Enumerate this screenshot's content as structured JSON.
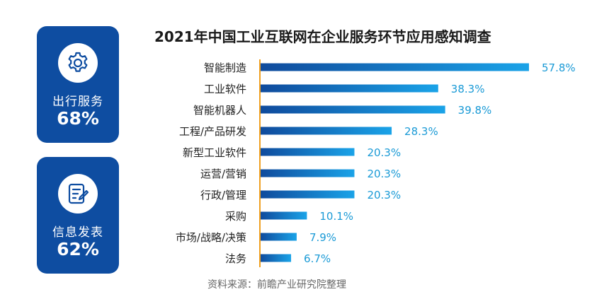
{
  "cards": [
    {
      "label": "出行服务",
      "value": "68%",
      "icon": "gear-icon"
    },
    {
      "label": "信息发表",
      "value": "62%",
      "icon": "edit-document-icon"
    }
  ],
  "source": "资料来源：前瞻产业研究院整理",
  "colors": {
    "card_bg": "#0e4da1",
    "bar_start": "#0f4a9c",
    "bar_end": "#1aa3e8",
    "value_text": "#1a9ad6",
    "axis_line": "#f0a020"
  },
  "chart_data": {
    "type": "bar",
    "orientation": "horizontal",
    "title": "2021年中国工业互联网在企业服务环节应用感知调查",
    "categories": [
      "智能制造",
      "工业软件",
      "智能机器人",
      "工程/产品研发",
      "新型工业软件",
      "运营/营销",
      "行政/管理",
      "采购",
      "市场/战略/决策",
      "法务"
    ],
    "values": [
      57.8,
      38.3,
      39.8,
      28.3,
      20.3,
      20.3,
      20.3,
      10.1,
      7.9,
      6.7
    ],
    "value_labels": [
      "57.8%",
      "38.3%",
      "39.8%",
      "28.3%",
      "20.3%",
      "20.3%",
      "20.3%",
      "10.1%",
      "7.9%",
      "6.7%"
    ],
    "xlim": [
      0,
      57.8
    ],
    "xlabel": "",
    "ylabel": ""
  }
}
